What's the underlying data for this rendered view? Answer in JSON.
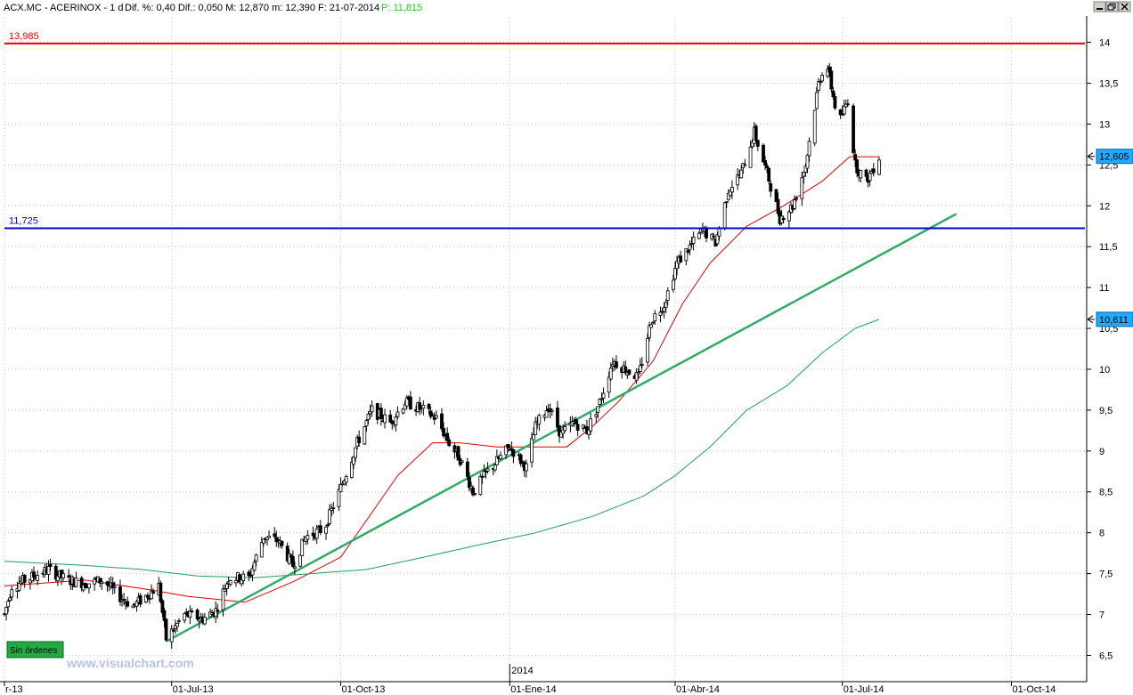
{
  "header": {
    "symbol": "ACX.MC - ACERINOX - 1 d",
    "stats": "Dif. %: 0,40  Dif.: 0,050  M: 12,870  m: 12,390  F: 21-07-2014",
    "p_label": "P: 11,815",
    "p_color": "#22cc22"
  },
  "window_controls": [
    "minimize-icon",
    "restore-icon",
    "close-icon"
  ],
  "hlines": [
    {
      "name": "resistance-line",
      "value": 13.985,
      "label": "13,985",
      "color": "#ee0000"
    },
    {
      "name": "support-line",
      "value": 11.725,
      "label": "11,725",
      "color": "#0000cc"
    }
  ],
  "price_badges": [
    {
      "name": "last-price-badge",
      "value": 12.605,
      "label": "12,605"
    },
    {
      "name": "ma200-price-badge",
      "value": 10.611,
      "label": "10,611"
    }
  ],
  "orders_label": "Sin órdenes",
  "watermark": "www.visualchart.com",
  "year_marker": "2014",
  "chart_data": {
    "type": "candlestick",
    "ylim": [
      6.2,
      14.3
    ],
    "yticks": [
      6.5,
      7,
      7.5,
      8,
      8.5,
      9,
      9.5,
      10,
      10.5,
      11,
      11.5,
      12,
      12.5,
      13,
      13.5,
      14
    ],
    "ytick_labels": [
      "6,5",
      "7",
      "7,5",
      "8",
      "8,5",
      "9",
      "9,5",
      "10",
      "10,5",
      "11",
      "11,5",
      "12",
      "12,5",
      "13",
      "13,5",
      "14"
    ],
    "xlim": [
      "2013-04-01",
      "2014-11-10"
    ],
    "xticks": [
      {
        "date": "2013-04-01",
        "label": "r-13"
      },
      {
        "date": "2013-07-01",
        "label": "01-Jul-13"
      },
      {
        "date": "2013-10-01",
        "label": "01-Oct-13"
      },
      {
        "date": "2014-01-01",
        "label": "01-Ene-14"
      },
      {
        "date": "2014-04-01",
        "label": "01-Abr-14"
      },
      {
        "date": "2014-07-01",
        "label": "01-Jul-14"
      },
      {
        "date": "2014-10-01",
        "label": "01-Oct-14"
      }
    ],
    "price_path": [
      [
        "2013-04-01",
        7.0
      ],
      [
        "2013-04-05",
        7.35
      ],
      [
        "2013-04-15",
        7.45
      ],
      [
        "2013-04-25",
        7.55
      ],
      [
        "2013-05-05",
        7.42
      ],
      [
        "2013-05-15",
        7.38
      ],
      [
        "2013-05-25",
        7.42
      ],
      [
        "2013-06-01",
        7.25
      ],
      [
        "2013-06-10",
        7.1
      ],
      [
        "2013-06-20",
        7.28
      ],
      [
        "2013-06-24",
        7.35
      ],
      [
        "2013-06-28",
        6.7
      ],
      [
        "2013-07-08",
        7.0
      ],
      [
        "2013-07-18",
        6.95
      ],
      [
        "2013-07-25",
        7.05
      ],
      [
        "2013-08-01",
        7.45
      ],
      [
        "2013-08-12",
        7.45
      ],
      [
        "2013-08-20",
        7.95
      ],
      [
        "2013-08-28",
        7.9
      ],
      [
        "2013-09-05",
        7.6
      ],
      [
        "2013-09-12",
        7.95
      ],
      [
        "2013-09-22",
        8.05
      ],
      [
        "2013-10-01",
        8.55
      ],
      [
        "2013-10-10",
        9.1
      ],
      [
        "2013-10-18",
        9.5
      ],
      [
        "2013-10-28",
        9.35
      ],
      [
        "2013-11-05",
        9.6
      ],
      [
        "2013-11-15",
        9.5
      ],
      [
        "2013-11-22",
        9.4
      ],
      [
        "2013-11-29",
        9.1
      ],
      [
        "2013-12-05",
        8.9
      ],
      [
        "2013-12-12",
        8.5
      ],
      [
        "2013-12-20",
        8.75
      ],
      [
        "2014-01-01",
        9.05
      ],
      [
        "2014-01-10",
        8.8
      ],
      [
        "2014-01-15",
        9.3
      ],
      [
        "2014-01-22",
        9.55
      ],
      [
        "2014-01-29",
        9.2
      ],
      [
        "2014-02-05",
        9.35
      ],
      [
        "2014-02-12",
        9.25
      ],
      [
        "2014-02-19",
        9.6
      ],
      [
        "2014-02-26",
        10.1
      ],
      [
        "2014-03-05",
        10.0
      ],
      [
        "2014-03-12",
        9.9
      ],
      [
        "2014-03-19",
        10.6
      ],
      [
        "2014-03-26",
        10.8
      ],
      [
        "2014-04-02",
        11.3
      ],
      [
        "2014-04-09",
        11.5
      ],
      [
        "2014-04-16",
        11.7
      ],
      [
        "2014-04-23",
        11.55
      ],
      [
        "2014-04-30",
        12.2
      ],
      [
        "2014-05-07",
        12.4
      ],
      [
        "2014-05-14",
        12.9
      ],
      [
        "2014-05-21",
        12.4
      ],
      [
        "2014-05-28",
        11.85
      ],
      [
        "2014-06-04",
        12.0
      ],
      [
        "2014-06-11",
        12.5
      ],
      [
        "2014-06-18",
        13.5
      ],
      [
        "2014-06-22",
        13.8
      ],
      [
        "2014-06-29",
        13.0
      ],
      [
        "2014-07-04",
        13.3
      ],
      [
        "2014-07-08",
        12.5
      ],
      [
        "2014-07-14",
        12.3
      ],
      [
        "2014-07-21",
        12.6
      ]
    ],
    "series": [
      {
        "kind": "sma-short",
        "color": "#dd0000",
        "points": [
          [
            "2013-04-01",
            7.35
          ],
          [
            "2013-05-15",
            7.42
          ],
          [
            "2013-06-20",
            7.3
          ],
          [
            "2013-07-10",
            7.22
          ],
          [
            "2013-08-10",
            7.15
          ],
          [
            "2013-09-05",
            7.4
          ],
          [
            "2013-10-01",
            7.7
          ],
          [
            "2013-10-15",
            8.15
          ],
          [
            "2013-11-01",
            8.7
          ],
          [
            "2013-11-20",
            9.1
          ],
          [
            "2013-12-05",
            9.1
          ],
          [
            "2013-12-25",
            9.05
          ],
          [
            "2014-01-15",
            9.05
          ],
          [
            "2014-02-01",
            9.05
          ],
          [
            "2014-02-15",
            9.3
          ],
          [
            "2014-03-01",
            9.6
          ],
          [
            "2014-03-20",
            10.1
          ],
          [
            "2014-04-05",
            10.8
          ],
          [
            "2014-04-20",
            11.3
          ],
          [
            "2014-05-10",
            11.75
          ],
          [
            "2014-05-30",
            12.0
          ],
          [
            "2014-06-20",
            12.3
          ],
          [
            "2014-07-05",
            12.6
          ],
          [
            "2014-07-21",
            12.6
          ]
        ]
      },
      {
        "kind": "sma-long",
        "color": "#22a050",
        "points": [
          [
            "2013-04-01",
            7.65
          ],
          [
            "2013-05-15",
            7.6
          ],
          [
            "2013-06-15",
            7.55
          ],
          [
            "2013-07-15",
            7.47
          ],
          [
            "2013-08-15",
            7.45
          ],
          [
            "2013-09-15",
            7.5
          ],
          [
            "2013-10-15",
            7.55
          ],
          [
            "2013-11-15",
            7.7
          ],
          [
            "2013-12-15",
            7.85
          ],
          [
            "2014-01-15",
            8.0
          ],
          [
            "2014-02-15",
            8.2
          ],
          [
            "2014-03-15",
            8.45
          ],
          [
            "2014-04-01",
            8.7
          ],
          [
            "2014-04-20",
            9.05
          ],
          [
            "2014-05-10",
            9.5
          ],
          [
            "2014-06-01",
            9.8
          ],
          [
            "2014-06-20",
            10.2
          ],
          [
            "2014-07-08",
            10.5
          ],
          [
            "2014-07-21",
            10.61
          ]
        ]
      },
      {
        "kind": "trendline",
        "color": "#33aa66",
        "points": [
          [
            "2013-06-28",
            6.67
          ],
          [
            "2014-09-01",
            11.9
          ]
        ]
      }
    ]
  }
}
